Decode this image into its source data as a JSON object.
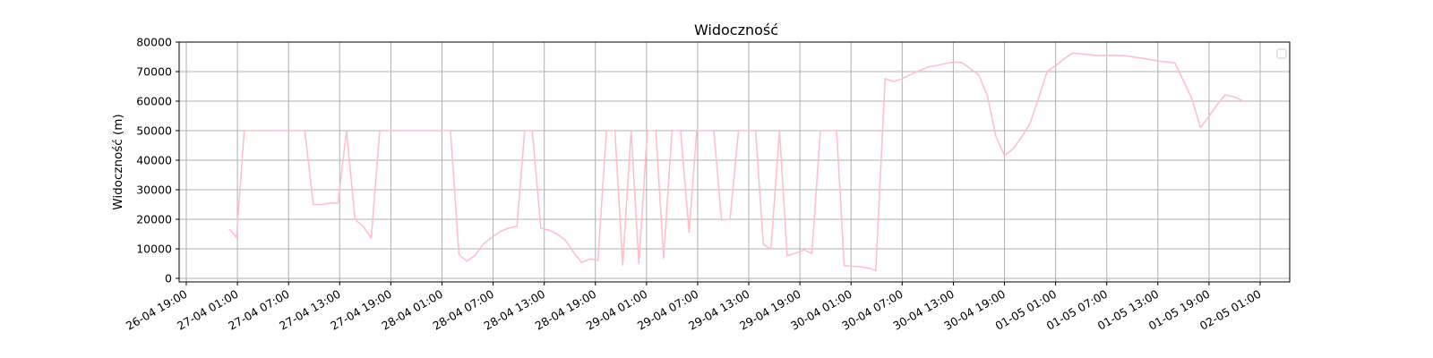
{
  "chart_data": {
    "type": "line",
    "title": "Widoczność",
    "xlabel": "",
    "ylabel": "Widoczność (m)",
    "ylim": [
      0,
      80000
    ],
    "yticks": [
      0,
      10000,
      20000,
      30000,
      40000,
      50000,
      60000,
      70000,
      80000
    ],
    "xticks": [
      {
        "t": 0,
        "label": "26-04 19:00"
      },
      {
        "t": 6,
        "label": "27-04 01:00"
      },
      {
        "t": 12,
        "label": "27-04 07:00"
      },
      {
        "t": 18,
        "label": "27-04 13:00"
      },
      {
        "t": 24,
        "label": "27-04 19:00"
      },
      {
        "t": 30,
        "label": "28-04 01:00"
      },
      {
        "t": 36,
        "label": "28-04 07:00"
      },
      {
        "t": 42,
        "label": "28-04 13:00"
      },
      {
        "t": 48,
        "label": "28-04 19:00"
      },
      {
        "t": 54,
        "label": "29-04 01:00"
      },
      {
        "t": 60,
        "label": "29-04 07:00"
      },
      {
        "t": 66,
        "label": "29-04 13:00"
      },
      {
        "t": 72,
        "label": "29-04 19:00"
      },
      {
        "t": 78,
        "label": "30-04 01:00"
      },
      {
        "t": 84,
        "label": "30-04 07:00"
      },
      {
        "t": 90,
        "label": "30-04 13:00"
      },
      {
        "t": 96,
        "label": "30-04 19:00"
      },
      {
        "t": 102,
        "label": "01-05 01:00"
      },
      {
        "t": 108,
        "label": "01-05 07:00"
      },
      {
        "t": 114,
        "label": "01-05 13:00"
      },
      {
        "t": 120,
        "label": "01-05 19:00"
      },
      {
        "t": 126,
        "label": "02-05 01:00"
      }
    ],
    "grid": true,
    "legend": {
      "placement": "top-right",
      "entries": []
    },
    "series": [
      {
        "color": "#ffc0cb",
        "points": [
          [
            5.0,
            16800
          ],
          [
            5.9,
            13900
          ],
          [
            6.8,
            50000
          ],
          [
            8.0,
            50000
          ],
          [
            10.0,
            50000
          ],
          [
            12.0,
            50000
          ],
          [
            13.9,
            50000
          ],
          [
            14.9,
            25000
          ],
          [
            15.9,
            25000
          ],
          [
            16.9,
            25500
          ],
          [
            17.8,
            25500
          ],
          [
            18.8,
            50000
          ],
          [
            19.8,
            20000
          ],
          [
            20.8,
            17500
          ],
          [
            21.7,
            13600
          ],
          [
            22.7,
            50000
          ],
          [
            24.0,
            50000
          ],
          [
            26.0,
            50000
          ],
          [
            28.0,
            50000
          ],
          [
            30.1,
            50000
          ],
          [
            31.0,
            50000
          ],
          [
            32.0,
            8100
          ],
          [
            32.9,
            5800
          ],
          [
            33.9,
            7800
          ],
          [
            34.8,
            11500
          ],
          [
            35.9,
            14000
          ],
          [
            36.8,
            15800
          ],
          [
            37.8,
            17000
          ],
          [
            38.8,
            17600
          ],
          [
            39.7,
            50000
          ],
          [
            40.6,
            50000
          ],
          [
            41.6,
            16900
          ],
          [
            42.6,
            16300
          ],
          [
            43.5,
            15000
          ],
          [
            44.5,
            12800
          ],
          [
            45.5,
            8600
          ],
          [
            46.4,
            5400
          ],
          [
            47.4,
            6600
          ],
          [
            48.3,
            6100
          ],
          [
            49.3,
            50000
          ],
          [
            50.3,
            50000
          ],
          [
            51.2,
            4500
          ],
          [
            52.2,
            50000
          ],
          [
            53.1,
            4900
          ],
          [
            54.1,
            50000
          ],
          [
            55.1,
            50000
          ],
          [
            56.0,
            6900
          ],
          [
            57.0,
            50000
          ],
          [
            58.0,
            50000
          ],
          [
            59.0,
            15600
          ],
          [
            59.9,
            50000
          ],
          [
            61.0,
            50000
          ],
          [
            61.9,
            50000
          ],
          [
            62.8,
            19800
          ],
          [
            63.8,
            20000
          ],
          [
            64.8,
            50000
          ],
          [
            65.8,
            50000
          ],
          [
            66.8,
            50000
          ],
          [
            67.7,
            11500
          ],
          [
            68.6,
            9900
          ],
          [
            69.6,
            50000
          ],
          [
            70.5,
            7700
          ],
          [
            71.5,
            8500
          ],
          [
            72.5,
            9600
          ],
          [
            73.4,
            8400
          ],
          [
            74.4,
            50000
          ],
          [
            75.3,
            50000
          ],
          [
            76.3,
            50000
          ],
          [
            77.2,
            4300
          ],
          [
            78.2,
            4100
          ],
          [
            79.2,
            3900
          ],
          [
            80.1,
            3400
          ],
          [
            80.9,
            2600
          ],
          [
            82.0,
            67600
          ],
          [
            83.0,
            66600
          ],
          [
            84.0,
            67600
          ],
          [
            85.0,
            69000
          ],
          [
            86.0,
            70300
          ],
          [
            87.0,
            71500
          ],
          [
            88.0,
            72000
          ],
          [
            89.0,
            72700
          ],
          [
            90.0,
            73200
          ],
          [
            91.0,
            73100
          ],
          [
            92.0,
            71000
          ],
          [
            93.0,
            68800
          ],
          [
            94.0,
            61800
          ],
          [
            95.0,
            48000
          ],
          [
            96.0,
            41600
          ],
          [
            97.0,
            43800
          ],
          [
            98.0,
            47800
          ],
          [
            99.0,
            52500
          ],
          [
            100.0,
            61000
          ],
          [
            101.0,
            70000
          ],
          [
            102.0,
            72000
          ],
          [
            103.0,
            74300
          ],
          [
            104.0,
            76300
          ],
          [
            105.0,
            76000
          ],
          [
            106.0,
            75700
          ],
          [
            107.0,
            75400
          ],
          [
            108.0,
            75500
          ],
          [
            109.0,
            75500
          ],
          [
            110.0,
            75400
          ],
          [
            112.0,
            74600
          ],
          [
            114.0,
            73600
          ],
          [
            116.0,
            72900
          ],
          [
            118.0,
            60800
          ],
          [
            119.0,
            51000
          ],
          [
            120.0,
            54900
          ],
          [
            121.0,
            59000
          ],
          [
            121.9,
            62100
          ],
          [
            123.0,
            61400
          ],
          [
            124.1,
            59900
          ]
        ]
      }
    ]
  }
}
